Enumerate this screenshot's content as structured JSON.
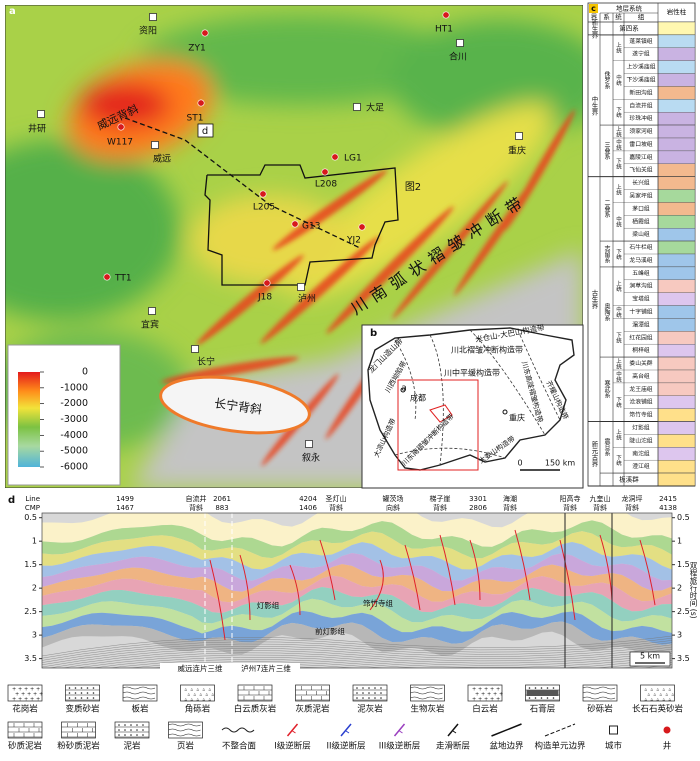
{
  "panel_a": {
    "label": "a",
    "places": [
      {
        "name": "资阳",
        "kind": "city"
      },
      {
        "name": "ZY1",
        "kind": "well"
      },
      {
        "name": "HT1",
        "kind": "well"
      },
      {
        "name": "合川",
        "kind": "city"
      },
      {
        "name": "井研",
        "kind": "city"
      },
      {
        "name": "ST1",
        "kind": "well"
      },
      {
        "name": "W117",
        "kind": "well"
      },
      {
        "name": "威远",
        "kind": "city"
      },
      {
        "name": "大足",
        "kind": "city"
      },
      {
        "name": "LG1",
        "kind": "well"
      },
      {
        "name": "重庆",
        "kind": "city"
      },
      {
        "name": "L208",
        "kind": "well"
      },
      {
        "name": "L205",
        "kind": "well"
      },
      {
        "name": "G13",
        "kind": "well"
      },
      {
        "name": "YJ2",
        "kind": "well"
      },
      {
        "name": "TT1",
        "kind": "well"
      },
      {
        "name": "J18",
        "kind": "well"
      },
      {
        "name": "泸州",
        "kind": "city"
      },
      {
        "name": "宜宾",
        "kind": "city"
      },
      {
        "name": "长宁",
        "kind": "city"
      },
      {
        "name": "叙永",
        "kind": "city"
      }
    ],
    "anticlines": [
      "威远背斜",
      "长宁背斜"
    ],
    "profile_label": "d",
    "box_label": "图2",
    "belt_label": "川南弧状褶皱冲断带",
    "colorbar": {
      "range": [
        0,
        -6000
      ],
      "ticks": [
        0,
        -1000,
        -2000,
        -3000,
        -4000,
        -5000,
        -6000
      ]
    }
  },
  "panel_b": {
    "label": "b",
    "units": [
      "米仓山-大巴山构造带",
      "龙门山造山带",
      "川西坳陷带",
      "川北褶皱冲断构造带",
      "川中平缓构造带",
      "川东高陡褶皱构造带",
      "齐耀山构造带",
      "大娄山构造带",
      "川东南褶皱冲断构造带",
      "大凉山构造带"
    ],
    "cities": [
      "成都",
      "重庆"
    ],
    "area_label": "a",
    "scale": {
      "start": "0",
      "end": "150 km"
    }
  },
  "panel_c": {
    "label": "c",
    "header": {
      "system": "地层系统",
      "columns": [
        "界",
        "系",
        "统",
        "组"
      ],
      "lithology": "岩性柱"
    },
    "eras": [
      {
        "name": "新生界",
        "systems": [
          {
            "name": "第四系",
            "series": []
          }
        ]
      },
      {
        "name": "中生界",
        "systems": [
          {
            "name": "侏罗系",
            "series": [
              {
                "name": "上统",
                "formations": [
                  "蓬莱镇组",
                  "遂宁组"
                ]
              },
              {
                "name": "中统",
                "formations": [
                  "上沙溪庙组",
                  "下沙溪庙组",
                  "新田沟组"
                ]
              },
              {
                "name": "下统",
                "formations": [
                  "自流井组",
                  "珍珠冲组"
                ]
              }
            ]
          },
          {
            "name": "三叠系",
            "series": [
              {
                "name": "上统",
                "formations": [
                  "须家河组"
                ]
              },
              {
                "name": "中统",
                "formations": [
                  "雷口坡组"
                ]
              },
              {
                "name": "下统",
                "formations": [
                  "嘉陵江组",
                  "飞仙关组"
                ]
              }
            ]
          }
        ]
      },
      {
        "name": "古生界",
        "systems": [
          {
            "name": "二叠系",
            "series": [
              {
                "name": "上统",
                "formations": [
                  "长兴组",
                  "吴家坪组"
                ]
              },
              {
                "name": "中统",
                "formations": [
                  "茅口组",
                  "栖霞组",
                  "梁山组"
                ]
              }
            ]
          },
          {
            "name": "志留系",
            "series": [
              {
                "name": "下统",
                "formations": [
                  "石牛栏组",
                  "龙马溪组"
                ]
              }
            ]
          },
          {
            "name": "奥陶系",
            "series": [
              {
                "name": "上统",
                "formations": [
                  "五峰组",
                  "涧草沟组",
                  "宝塔组"
                ]
              },
              {
                "name": "中统",
                "formations": [
                  "十字铺组"
                ]
              },
              {
                "name": "下统",
                "formations": [
                  "湄潭组",
                  "红花园组",
                  "桐梓组"
                ]
              }
            ]
          },
          {
            "name": "寒武系",
            "series": [
              {
                "name": "上统",
                "formations": [
                  "娄山关群"
                ]
              },
              {
                "name": "中统",
                "formations": [
                  "高台组"
                ]
              },
              {
                "name": "下统",
                "formations": [
                  "龙王庙组",
                  "沧浪铺组",
                  "筇竹寺组"
                ]
              }
            ]
          }
        ]
      },
      {
        "name": "新元古界",
        "systems": [
          {
            "name": "震旦系",
            "series": [
              {
                "name": "上统",
                "formations": [
                  "灯影组",
                  "陡山沱组"
                ]
              },
              {
                "name": "下统",
                "formations": [
                  "南沱组",
                  "澄江组"
                ]
              }
            ]
          },
          {
            "name": "板溪群",
            "series": []
          }
        ]
      }
    ]
  },
  "panel_d": {
    "label": "d",
    "line_label": "Line",
    "cmp_label": "CMP",
    "stations": [
      {
        "line": 1499,
        "cmp": 1467
      },
      {
        "line": 2061,
        "cmp": 883
      },
      {
        "line": 4204,
        "cmp": 1406
      },
      {
        "line": 3301,
        "cmp": 2806
      },
      {
        "line": 2415,
        "cmp": 4138
      }
    ],
    "structures": [
      "自流井背斜",
      "圣灯山背斜",
      "罐茨场向斜",
      "梯子崖背斜",
      "海潮背斜",
      "阳高寺背斜",
      "九奎山背斜",
      "龙洞坪背斜"
    ],
    "surveys": [
      "威远连片三维",
      "泸州7连片三维"
    ],
    "layers": [
      "灯影组",
      "筇竹寺组",
      "前灯影组"
    ],
    "axis_title": "双程旅行时间 (s)",
    "ylim": [
      0.4,
      3.7
    ],
    "yticks": [
      0.5,
      1.0,
      1.5,
      2.0,
      2.5,
      3.0,
      3.5
    ],
    "scale": "5 km"
  },
  "legend": {
    "items": [
      "花岗岩",
      "变质砂岩",
      "板岩",
      "角砾岩",
      "白云质灰岩",
      "灰质泥岩",
      "泥灰岩",
      "生物灰岩",
      "白云岩",
      "石膏层",
      "砂砾岩",
      "长石石英砂岩",
      "砂质泥岩",
      "粉砂质泥岩",
      "泥岩",
      "页岩",
      "不整合面",
      "I级逆断层",
      "II级逆断层",
      "III级逆断层",
      "走滑断层",
      "盆地边界",
      "构造单元边界",
      "城市",
      "井"
    ]
  }
}
